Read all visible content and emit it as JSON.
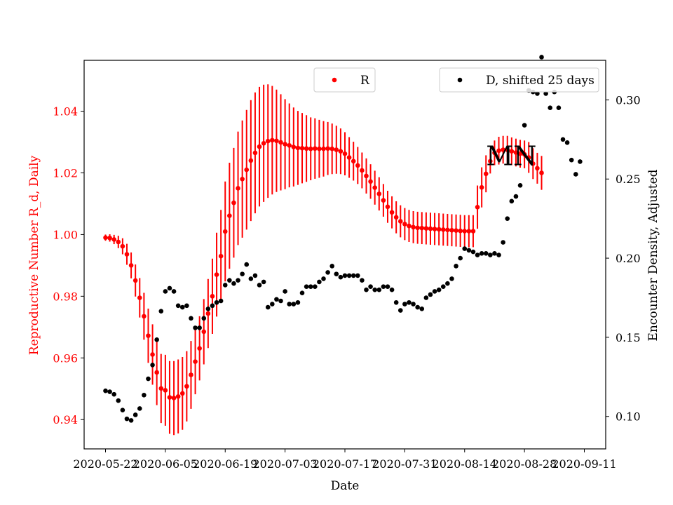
{
  "chart_data": {
    "type": "scatter",
    "title": "",
    "xlabel": "Date",
    "ylabel_left": "Reproductive Number R_d, Daily",
    "ylabel_right": "Encounter Density, Adjusted",
    "x_ticks": [
      "2020-05-22",
      "2020-06-05",
      "2020-06-19",
      "2020-07-03",
      "2020-07-17",
      "2020-07-31",
      "2020-08-14",
      "2020-08-28",
      "2020-09-11"
    ],
    "y_left_ticks": [
      "0.94",
      "0.96",
      "0.98",
      "1.00",
      "1.02",
      "1.04"
    ],
    "y_right_ticks": [
      "0.10",
      "0.15",
      "0.20",
      "0.25",
      "0.30"
    ],
    "x_range": [
      "2020-05-17",
      "2020-09-16"
    ],
    "y_left_range": [
      0.9305,
      1.0565
    ],
    "y_right_range": [
      0.0795,
      0.325
    ],
    "grid": false,
    "legend_left": {
      "label": "R",
      "placement": "top-center"
    },
    "legend_right": {
      "label": "D, shifted 25 days",
      "placement": "top-right"
    },
    "annotation": {
      "text": "MN",
      "x": "2020-08-19",
      "y_left": 1.0255
    },
    "colors": {
      "r_series": "#ff0000",
      "d_series": "#000000",
      "left_axis": "#ff0000",
      "right_axis": "#000000"
    },
    "series": [
      {
        "name": "R",
        "axis": "left",
        "x_start": "2020-05-22",
        "x_step_days": 1,
        "values": [
          0.999,
          0.9989,
          0.9984,
          0.9976,
          0.9962,
          0.9936,
          0.99,
          0.9851,
          0.9795,
          0.9735,
          0.9672,
          0.9611,
          0.9553,
          0.9501,
          0.9495,
          0.9472,
          0.947,
          0.9475,
          0.9485,
          0.9508,
          0.9545,
          0.9588,
          0.9631,
          0.9685,
          0.9744,
          0.98,
          0.987,
          0.993,
          1.001,
          1.0061,
          1.0103,
          1.015,
          1.018,
          1.021,
          1.024,
          1.0265,
          1.0285,
          1.0296,
          1.0303,
          1.0306,
          1.0304,
          1.0299,
          1.0293,
          1.0289,
          1.0284,
          1.0281,
          1.028,
          1.0279,
          1.0278,
          1.0279,
          1.0278,
          1.0278,
          1.0279,
          1.0278,
          1.0275,
          1.027,
          1.0262,
          1.025,
          1.0238,
          1.0224,
          1.0208,
          1.019,
          1.0172,
          1.0152,
          1.0132,
          1.0111,
          1.009,
          1.0072,
          1.0056,
          1.0043,
          1.0034,
          1.0028,
          1.0024,
          1.0022,
          1.0021,
          1.002,
          1.0019,
          1.0018,
          1.0017,
          1.0016,
          1.0015,
          1.0014,
          1.0013,
          1.0012,
          1.0011,
          1.0011,
          1.0011,
          1.0089,
          1.0153,
          1.0197,
          1.0238,
          1.0265,
          1.0272,
          1.0275,
          1.0275,
          1.027,
          1.0266,
          1.0262,
          1.026,
          1.025,
          1.023,
          1.0215,
          1.02
        ],
        "errors": [
          0.001,
          0.0012,
          0.0015,
          0.002,
          0.0026,
          0.0034,
          0.0042,
          0.0052,
          0.0064,
          0.0076,
          0.0088,
          0.0098,
          0.0106,
          0.0112,
          0.0115,
          0.0118,
          0.012,
          0.012,
          0.0118,
          0.0114,
          0.011,
          0.0106,
          0.0104,
          0.0106,
          0.0112,
          0.0122,
          0.0136,
          0.015,
          0.0162,
          0.0172,
          0.0178,
          0.0184,
          0.019,
          0.0194,
          0.0196,
          0.0196,
          0.0194,
          0.019,
          0.0184,
          0.0176,
          0.0166,
          0.0156,
          0.0146,
          0.0136,
          0.0128,
          0.012,
          0.0114,
          0.0108,
          0.0102,
          0.0098,
          0.0094,
          0.009,
          0.0086,
          0.0082,
          0.0078,
          0.0074,
          0.007,
          0.0066,
          0.0063,
          0.006,
          0.0058,
          0.0057,
          0.0056,
          0.0055,
          0.0054,
          0.0053,
          0.0052,
          0.0052,
          0.0052,
          0.0052,
          0.0052,
          0.0052,
          0.0052,
          0.0052,
          0.0052,
          0.0052,
          0.0052,
          0.0052,
          0.0052,
          0.0052,
          0.0052,
          0.0052,
          0.0052,
          0.0052,
          0.0052,
          0.0052,
          0.0052,
          0.007,
          0.0065,
          0.006,
          0.004,
          0.004,
          0.0045,
          0.0045,
          0.0045,
          0.0045,
          0.0045,
          0.0045,
          0.0045,
          0.005,
          0.005,
          0.005,
          0.0055
        ]
      },
      {
        "name": "D, shifted 25 days",
        "axis": "right",
        "x_start": "2020-05-22",
        "x_step_days": 1,
        "values": [
          0.1162,
          0.1156,
          0.114,
          0.11,
          0.104,
          0.0985,
          0.0975,
          0.101,
          0.105,
          0.1135,
          0.1238,
          0.1325,
          0.1485,
          0.1665,
          0.179,
          0.181,
          0.179,
          0.17,
          0.169,
          0.17,
          0.162,
          0.156,
          0.156,
          0.162,
          0.168,
          0.17,
          0.172,
          0.173,
          0.183,
          0.186,
          0.184,
          0.186,
          0.19,
          0.196,
          0.187,
          0.189,
          0.183,
          0.185,
          0.169,
          0.171,
          0.174,
          0.173,
          0.179,
          0.171,
          0.171,
          0.172,
          0.178,
          0.182,
          0.182,
          0.182,
          0.185,
          0.187,
          0.191,
          0.195,
          0.19,
          0.188,
          0.189,
          0.189,
          0.189,
          0.189,
          0.186,
          0.18,
          0.182,
          0.18,
          0.18,
          0.182,
          0.182,
          0.18,
          0.172,
          0.167,
          0.171,
          0.172,
          0.171,
          0.169,
          0.168,
          0.175,
          0.177,
          0.179,
          0.18,
          0.182,
          0.184,
          0.187,
          0.195,
          0.2,
          0.206,
          0.205,
          0.204,
          0.202,
          0.203,
          0.203,
          0.202,
          0.203,
          0.202,
          0.21,
          0.225,
          0.236,
          0.239,
          0.246,
          0.284,
          0.306,
          0.305,
          0.304,
          0.327,
          0.304,
          0.295,
          0.305,
          0.295,
          0.275,
          0.273,
          0.262,
          0.253,
          0.261
        ]
      }
    ]
  }
}
